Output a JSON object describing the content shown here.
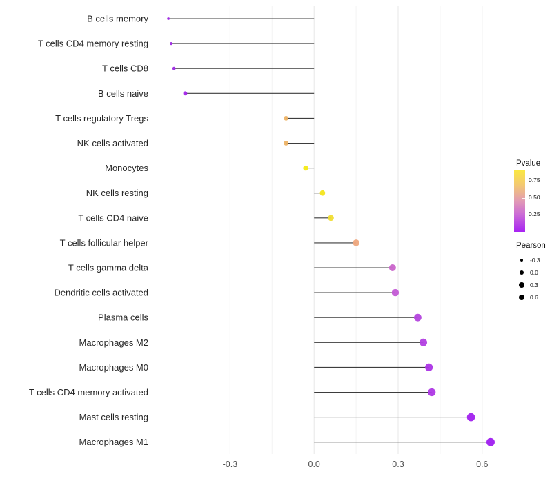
{
  "chart_data": {
    "type": "scatter",
    "variant": "lollipop",
    "orientation": "horizontal",
    "title": "",
    "xlabel": "",
    "ylabel": "",
    "xlim": [
      -0.58,
      0.69
    ],
    "x_ticks": [
      -0.3,
      0.0,
      0.3,
      0.6
    ],
    "x_tick_labels": [
      "-0.3",
      "0.0",
      "0.3",
      "0.6"
    ],
    "minor_gridlines": [
      -0.45,
      -0.15,
      0.15,
      0.45
    ],
    "baseline_x": 0,
    "grid": true,
    "stem_color": "#3d3d3d",
    "rows": [
      {
        "category": "B cells memory",
        "pearson": -0.52,
        "dot_diameter": 3.8,
        "color": "#A02BE3"
      },
      {
        "category": "T cells CD4 memory resting",
        "pearson": -0.51,
        "dot_diameter": 4.2,
        "color": "#9F2BE4"
      },
      {
        "category": "T cells CD8",
        "pearson": -0.5,
        "dot_diameter": 4.8,
        "color": "#9D2BE2"
      },
      {
        "category": "B cells naive",
        "pearson": -0.46,
        "dot_diameter": 5.8,
        "color": "#A326EA"
      },
      {
        "category": "T cells regulatory  Tregs",
        "pearson": -0.1,
        "dot_diameter": 6.8,
        "color": "#EDB366"
      },
      {
        "category": "NK cells activated",
        "pearson": -0.1,
        "dot_diameter": 6.8,
        "color": "#EDB366"
      },
      {
        "category": "Monocytes",
        "pearson": -0.03,
        "dot_diameter": 7.4,
        "color": "#F4EA15"
      },
      {
        "category": "NK cells resting",
        "pearson": 0.03,
        "dot_diameter": 7.8,
        "color": "#F4E51C"
      },
      {
        "category": "T cells CD4 naive",
        "pearson": 0.06,
        "dot_diameter": 8.6,
        "color": "#F0DD33"
      },
      {
        "category": "T cells follicular helper",
        "pearson": 0.15,
        "dot_diameter": 9.6,
        "color": "#EEA77D"
      },
      {
        "category": "T cells gamma delta",
        "pearson": 0.28,
        "dot_diameter": 10.0,
        "color": "#C964CA"
      },
      {
        "category": "Dendritic cells activated",
        "pearson": 0.29,
        "dot_diameter": 10.4,
        "color": "#C35BD5"
      },
      {
        "category": "Plasma cells",
        "pearson": 0.37,
        "dot_diameter": 10.8,
        "color": "#B445DE"
      },
      {
        "category": "Macrophages M2",
        "pearson": 0.39,
        "dot_diameter": 11.0,
        "color": "#B240E1"
      },
      {
        "category": "Macrophages M0",
        "pearson": 0.41,
        "dot_diameter": 11.2,
        "color": "#AC34E6"
      },
      {
        "category": "T cells CD4 memory activated",
        "pearson": 0.42,
        "dot_diameter": 11.2,
        "color": "#AE38E5"
      },
      {
        "category": "Mast cells resting",
        "pearson": 0.56,
        "dot_diameter": 11.6,
        "color": "#A121EE"
      },
      {
        "category": "Macrophages M1",
        "pearson": 0.63,
        "dot_diameter": 12.0,
        "color": "#9F1DF0"
      }
    ],
    "legends": {
      "pvalue": {
        "title": "Pvalue",
        "tick_labels": [
          "0.75",
          "0.50",
          "0.25"
        ],
        "gradient_stops": [
          {
            "offset": "0%",
            "color": "#FBE93F"
          },
          {
            "offset": "25%",
            "color": "#F3C873"
          },
          {
            "offset": "50%",
            "color": "#E29BB4"
          },
          {
            "offset": "72%",
            "color": "#CB6BD6"
          },
          {
            "offset": "100%",
            "color": "#A824F2"
          }
        ]
      },
      "pearson": {
        "title": "Pearson",
        "dot_color": "#000000",
        "items": [
          {
            "label": "-0.3",
            "diameter": 4.6
          },
          {
            "label": "0.0",
            "diameter": 6.2
          },
          {
            "label": "0.3",
            "diameter": 7.6
          },
          {
            "label": "0.6",
            "diameter": 8.8
          }
        ]
      }
    }
  }
}
